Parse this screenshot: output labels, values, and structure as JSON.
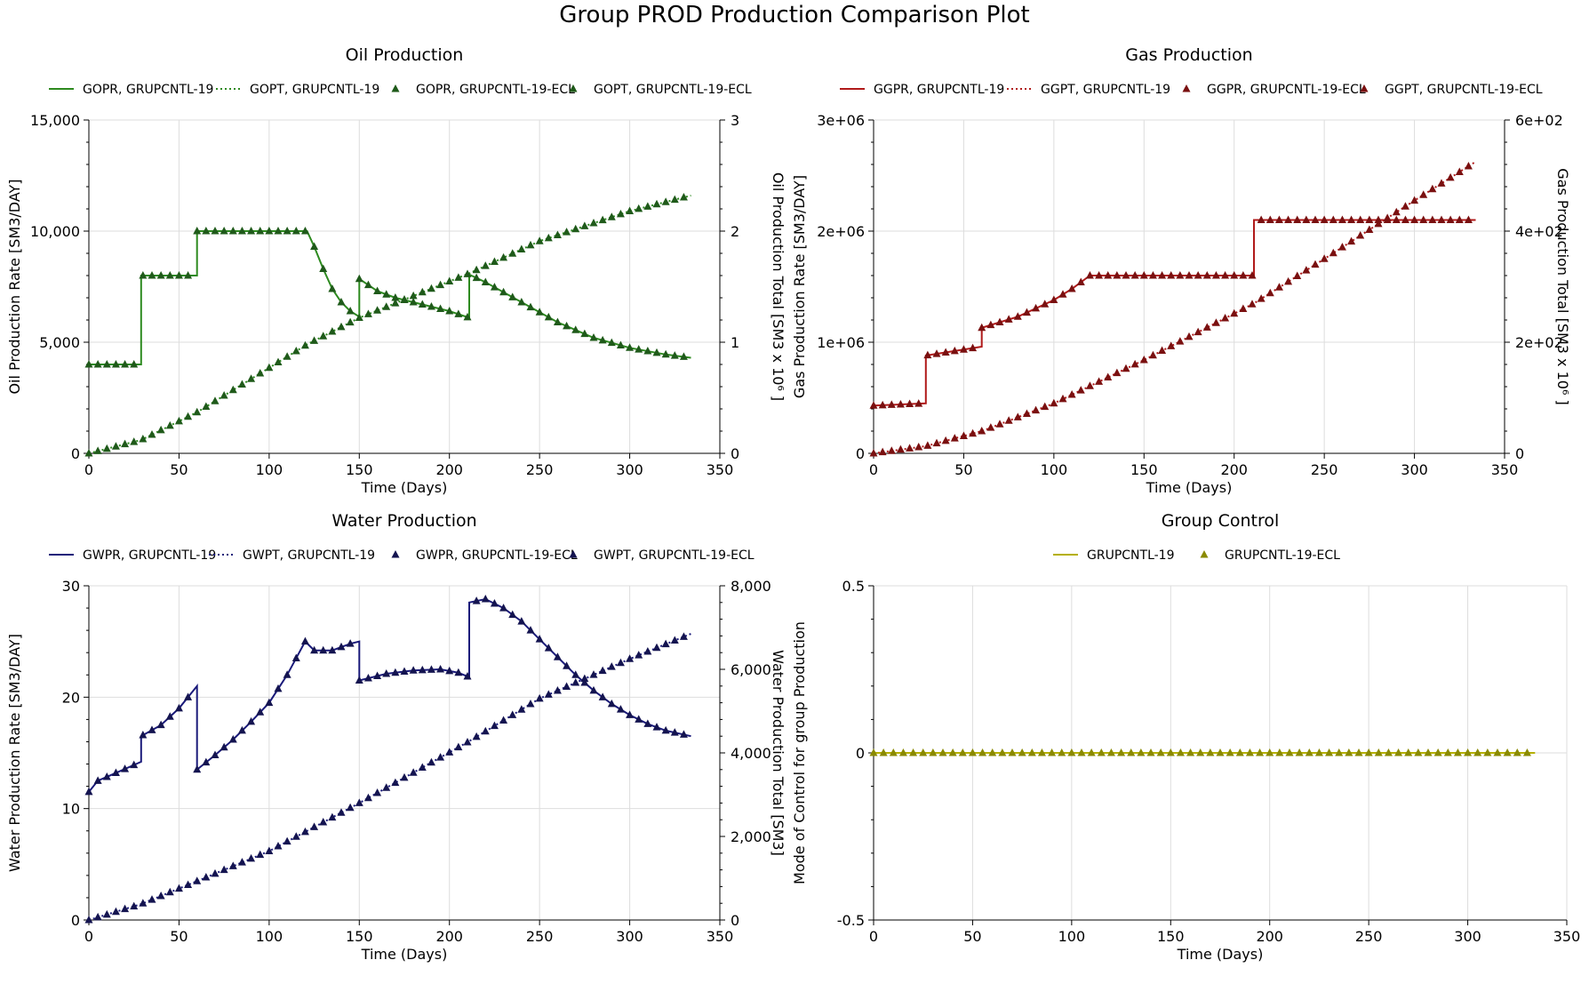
{
  "page_title": "Group PROD Production Comparison Plot",
  "colors": {
    "oil": "#2d8a1f",
    "oil_marker": "#1f5a1a",
    "gas": "#b01a1a",
    "gas_marker": "#7a1010",
    "water": "#1a1a7a",
    "water_marker": "#141450",
    "control": "#b5b000",
    "control_marker": "#8a8a00",
    "grid": "#dddddd"
  },
  "chart_data": [
    {
      "type": "line",
      "title": "Oil Production",
      "xlabel": "Time (Days)",
      "ylabel": "Oil Production Rate [SM3/DAY]",
      "y2label": "Oil Production Total [SM3 x 10⁶ ]",
      "xlim": [
        0,
        350
      ],
      "ylim": [
        0,
        15000
      ],
      "y2lim": [
        0,
        3
      ],
      "xticks": [
        "0",
        "50",
        "100",
        "150",
        "200",
        "250",
        "300",
        "350"
      ],
      "yticks": [
        "0",
        "5,000",
        "10,000",
        "15,000"
      ],
      "y2ticks": [
        "0",
        "1",
        "2",
        "3"
      ],
      "grid": true,
      "legend": "top",
      "series": [
        {
          "name": "GOPR, GRUPCNTL-19",
          "axis": "left",
          "style": "solid",
          "points": [
            [
              0,
              4000
            ],
            [
              29,
              4000
            ],
            [
              29,
              8000
            ],
            [
              60,
              8000
            ],
            [
              60,
              10000
            ],
            [
              121,
              10000
            ],
            [
              125,
              9300
            ],
            [
              130,
              8300
            ],
            [
              135,
              7400
            ],
            [
              140,
              6800
            ],
            [
              145,
              6400
            ],
            [
              150,
              6150
            ],
            [
              150,
              7850
            ],
            [
              160,
              7300
            ],
            [
              170,
              7000
            ],
            [
              180,
              6800
            ],
            [
              190,
              6600
            ],
            [
              200,
              6400
            ],
            [
              211,
              6100
            ],
            [
              211,
              8050
            ],
            [
              220,
              7700
            ],
            [
              240,
              6800
            ],
            [
              260,
              5900
            ],
            [
              280,
              5200
            ],
            [
              300,
              4750
            ],
            [
              320,
              4450
            ],
            [
              334,
              4300
            ]
          ]
        },
        {
          "name": "GOPT, GRUPCNTL-19",
          "axis": "right",
          "style": "dotted",
          "points": [
            [
              0,
              0
            ],
            [
              29,
              0.12
            ],
            [
              60,
              0.37
            ],
            [
              121,
              0.98
            ],
            [
              150,
              1.22
            ],
            [
              211,
              1.62
            ],
            [
              250,
              1.91
            ],
            [
              300,
              2.18
            ],
            [
              334,
              2.32
            ]
          ]
        },
        {
          "name": "GOPR, GRUPCNTL-19-ECL",
          "axis": "left",
          "style": "markers",
          "ref": 0
        },
        {
          "name": "GOPT, GRUPCNTL-19-ECL",
          "axis": "right",
          "style": "markers",
          "ref": 1
        }
      ]
    },
    {
      "type": "line",
      "title": "Gas Production",
      "xlabel": "Time (Days)",
      "ylabel": "Gas Production Rate [SM3/DAY]",
      "y2label": "Gas Production Total [SM3 x 10⁶ ]",
      "xlim": [
        0,
        350
      ],
      "ylim": [
        0,
        3000000
      ],
      "y2lim": [
        0,
        600
      ],
      "xticks": [
        "0",
        "50",
        "100",
        "150",
        "200",
        "250",
        "300",
        "350"
      ],
      "yticks": [
        "0",
        "1e+06",
        "2e+06",
        "3e+06"
      ],
      "y2ticks": [
        "0",
        "2e+02",
        "4e+02",
        "6e+02"
      ],
      "grid": true,
      "legend": "top",
      "series": [
        {
          "name": "GGPR, GRUPCNTL-19",
          "axis": "left",
          "style": "solid",
          "points": [
            [
              0,
              430000
            ],
            [
              29,
              450000
            ],
            [
              29,
              880000
            ],
            [
              60,
              960000
            ],
            [
              60,
              1130000
            ],
            [
              80,
              1230000
            ],
            [
              100,
              1380000
            ],
            [
              110,
              1480000
            ],
            [
              120,
              1600000
            ],
            [
              211,
              1600000
            ],
            [
              211,
              2100000
            ],
            [
              334,
              2100000
            ]
          ]
        },
        {
          "name": "GGPT, GRUPCNTL-19",
          "axis": "right",
          "style": "dotted",
          "points": [
            [
              0,
              0
            ],
            [
              29,
              13
            ],
            [
              60,
              40
            ],
            [
              100,
              90
            ],
            [
              150,
              168
            ],
            [
              211,
              270
            ],
            [
              250,
              350
            ],
            [
              300,
              455
            ],
            [
              334,
              525
            ]
          ]
        },
        {
          "name": "GGPR, GRUPCNTL-19-ECL",
          "axis": "left",
          "style": "markers",
          "ref": 0
        },
        {
          "name": "GGPT, GRUPCNTL-19-ECL",
          "axis": "right",
          "style": "markers",
          "ref": 1
        }
      ]
    },
    {
      "type": "line",
      "title": "Water Production",
      "xlabel": "Time (Days)",
      "ylabel": "Water Production Rate [SM3/DAY]",
      "y2label": "Water Production Total [SM3]",
      "xlim": [
        0,
        350
      ],
      "ylim": [
        0,
        30
      ],
      "y2lim": [
        0,
        8000
      ],
      "xticks": [
        "0",
        "50",
        "100",
        "150",
        "200",
        "250",
        "300",
        "350"
      ],
      "yticks": [
        "0",
        "10",
        "20",
        "30"
      ],
      "y2ticks": [
        "0",
        "2,000",
        "4,000",
        "6,000",
        "8,000"
      ],
      "grid": true,
      "legend": "top",
      "series": [
        {
          "name": "GWPR, GRUPCNTL-19",
          "axis": "left",
          "style": "solid",
          "points": [
            [
              0,
              11.5
            ],
            [
              5,
              12.5
            ],
            [
              15,
              13.2
            ],
            [
              29,
              14.2
            ],
            [
              29,
              16.5
            ],
            [
              40,
              17.5
            ],
            [
              50,
              19
            ],
            [
              60,
              21
            ],
            [
              60,
              13.5
            ],
            [
              70,
              14.8
            ],
            [
              80,
              16.2
            ],
            [
              90,
              17.8
            ],
            [
              100,
              19.5
            ],
            [
              110,
              22
            ],
            [
              120,
              25
            ],
            [
              125,
              24.2
            ],
            [
              135,
              24.2
            ],
            [
              145,
              24.8
            ],
            [
              150,
              25
            ],
            [
              150,
              21.5
            ],
            [
              165,
              22.1
            ],
            [
              180,
              22.4
            ],
            [
              195,
              22.5
            ],
            [
              205,
              22.2
            ],
            [
              211,
              21.8
            ],
            [
              211,
              28.5
            ],
            [
              220,
              28.8
            ],
            [
              230,
              28
            ],
            [
              240,
              26.8
            ],
            [
              250,
              25.2
            ],
            [
              260,
              23.6
            ],
            [
              270,
              22
            ],
            [
              280,
              20.6
            ],
            [
              290,
              19.4
            ],
            [
              300,
              18.4
            ],
            [
              310,
              17.6
            ],
            [
              320,
              17
            ],
            [
              334,
              16.5
            ]
          ]
        },
        {
          "name": "GWPT, GRUPCNTL-19",
          "axis": "right",
          "style": "dotted",
          "points": [
            [
              0,
              0
            ],
            [
              29,
              380
            ],
            [
              60,
              930
            ],
            [
              100,
              1650
            ],
            [
              150,
              2800
            ],
            [
              211,
              4280
            ],
            [
              250,
              5300
            ],
            [
              300,
              6250
            ],
            [
              334,
              6850
            ]
          ]
        },
        {
          "name": "GWPR, GRUPCNTL-19-ECL",
          "axis": "left",
          "style": "markers",
          "ref": 0
        },
        {
          "name": "GWPT, GRUPCNTL-19-ECL",
          "axis": "right",
          "style": "markers",
          "ref": 1
        }
      ]
    },
    {
      "type": "line",
      "title": "Group Control",
      "xlabel": "Time (Days)",
      "ylabel": "Mode of Control for group Production",
      "y2label": "",
      "xlim": [
        0,
        350
      ],
      "ylim": [
        -0.5,
        0.5
      ],
      "y2lim": null,
      "xticks": [
        "0",
        "50",
        "100",
        "150",
        "200",
        "250",
        "300",
        "350"
      ],
      "yticks": [
        "-0.5",
        "0",
        "0.5"
      ],
      "y2ticks": [],
      "grid": true,
      "legend": "top",
      "series": [
        {
          "name": "GRUPCNTL-19",
          "axis": "left",
          "style": "solid",
          "points": [
            [
              0,
              0
            ],
            [
              334,
              0
            ]
          ]
        },
        {
          "name": "GRUPCNTL-19-ECL",
          "axis": "left",
          "style": "markers",
          "ref": 0
        }
      ]
    }
  ]
}
